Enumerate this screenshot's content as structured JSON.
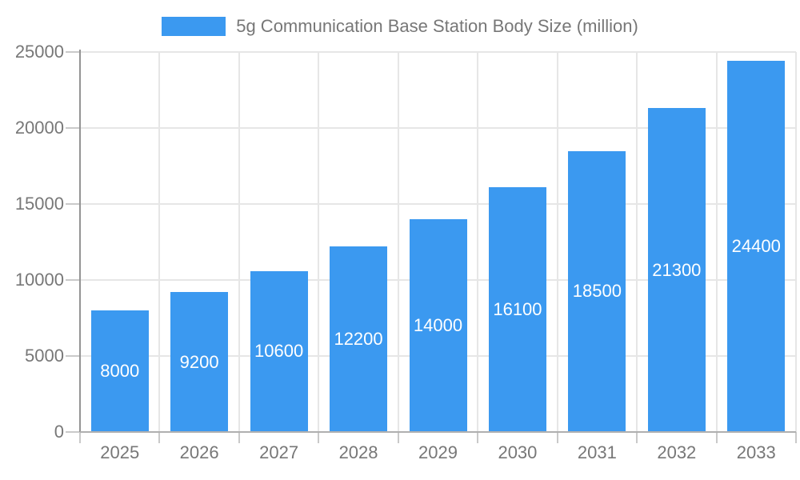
{
  "legend": {
    "label": "5g Communication Base Station Body Size (million)"
  },
  "chart_data": {
    "type": "bar",
    "title": "5g Communication Base Station Body Size (million)",
    "categories": [
      "2025",
      "2026",
      "2027",
      "2028",
      "2029",
      "2030",
      "2031",
      "2032",
      "2033"
    ],
    "values": [
      8000,
      9200,
      10600,
      12200,
      14000,
      16100,
      18500,
      21300,
      24400
    ],
    "xlabel": "",
    "ylabel": "",
    "ylim": [
      0,
      25000
    ],
    "y_ticks": [
      0,
      5000,
      10000,
      15000,
      20000,
      25000
    ],
    "grid": true,
    "legend_position": "top",
    "value_labels": "centered-inside-bars",
    "colors": {
      "bar": "#3B99F0",
      "value_label": "#FFFFFF",
      "axis_label": "#777777",
      "title": "#777777",
      "grid_line": "#E6E6E6",
      "tick_line": "#C9C9C9",
      "y_axis_line": "#949494",
      "x_axis_line": "#B0B0B0",
      "background": "#FFFFFF"
    }
  }
}
